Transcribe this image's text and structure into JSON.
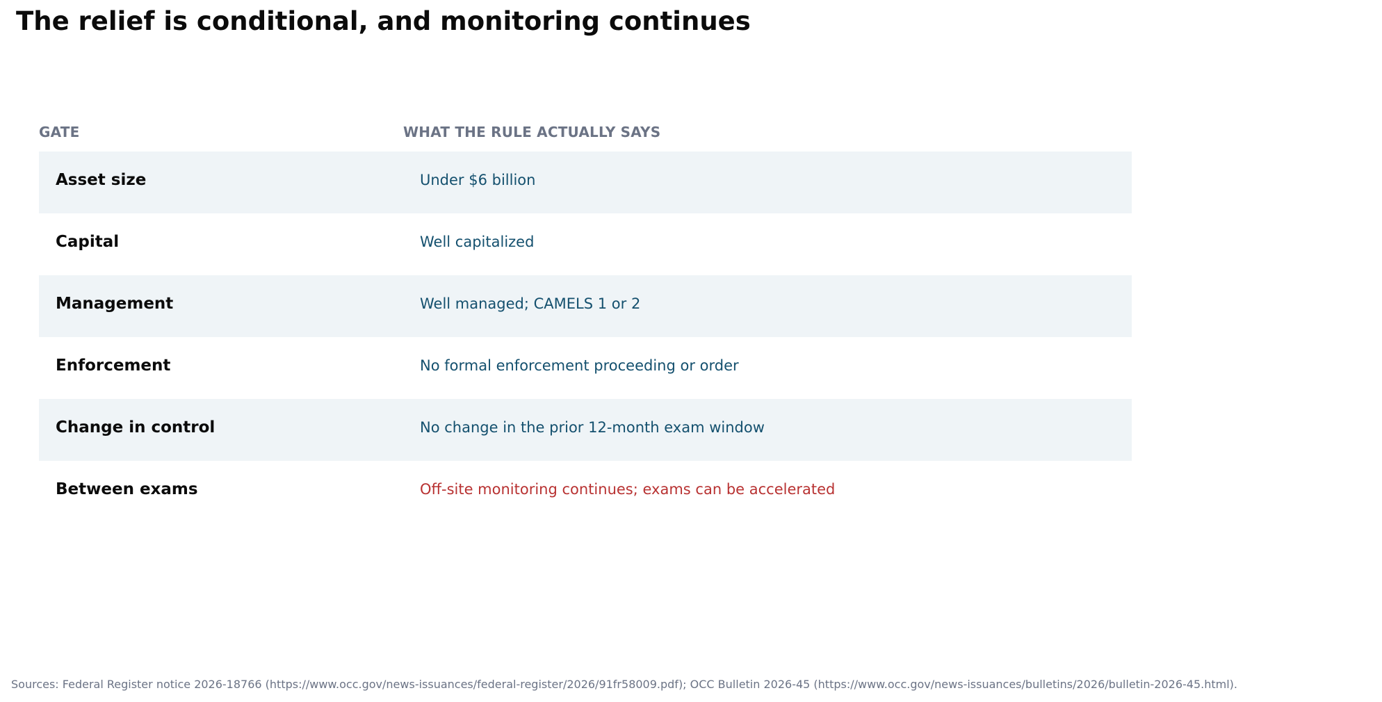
{
  "title": "The relief is conditional, and monitoring continues",
  "table": {
    "headers": {
      "gate": "GATE",
      "rule": "WHAT THE RULE ACTUALLY SAYS"
    },
    "rows": [
      {
        "gate": "Asset size",
        "rule": "Under $6 billion"
      },
      {
        "gate": "Capital",
        "rule": "Well capitalized"
      },
      {
        "gate": "Management",
        "rule": "Well managed; CAMELS 1 or 2"
      },
      {
        "gate": "Enforcement",
        "rule": "No formal enforcement proceeding or order"
      },
      {
        "gate": "Change in control",
        "rule": "No change in the prior 12-month exam window"
      },
      {
        "gate": "Between exams",
        "rule": "Off-site monitoring continues; exams can be accelerated"
      }
    ]
  },
  "sources": "Sources: Federal Register notice 2026-18766 (https://www.occ.gov/news-issuances/federal-register/2026/91fr58009.pdf); OCC Bulletin 2026-45 (https://www.occ.gov/news-issuances/bulletins/2026/bulletin-2026-45.html).",
  "colors": {
    "row_shade": "#eff4f7",
    "rule_text": "#14506e",
    "warning_text": "#b83232",
    "header_text": "#6b7385"
  }
}
